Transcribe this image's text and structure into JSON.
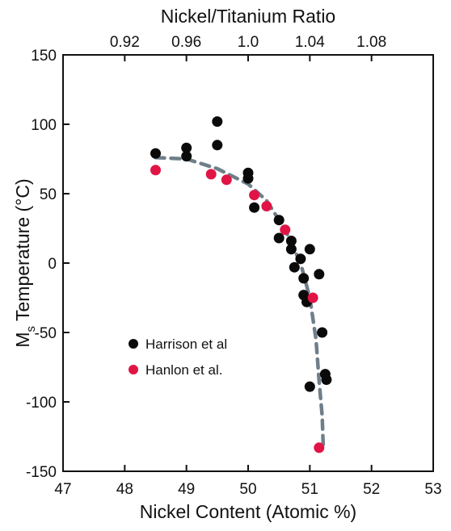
{
  "chart_data": {
    "type": "scatter",
    "title": "",
    "xlabel": "Nickel Content (Atomic %)",
    "ylabel_main": "M",
    "ylabel_sub": "s",
    "ylabel_rest": " Temperature (°C)",
    "top_axis_label": "Nickel/Titanium Ratio",
    "xlim": [
      47,
      53
    ],
    "ylim": [
      -150,
      150
    ],
    "x_ticks": [
      47,
      48,
      49,
      50,
      51,
      52,
      53
    ],
    "y_ticks": [
      150,
      100,
      50,
      0,
      -50,
      -100,
      -150
    ],
    "top_ticks": [
      {
        "label": "0.92",
        "x": 48.0
      },
      {
        "label": "0.96",
        "x": 49.0
      },
      {
        "label": "1.0",
        "x": 50.0
      },
      {
        "label": "1.04",
        "x": 51.0
      },
      {
        "label": "1.08",
        "x": 52.0
      }
    ],
    "grid": false,
    "legend_position": "lower-left",
    "series": [
      {
        "name": "Harrison et al",
        "color": "#0a0a0a",
        "points": [
          [
            48.5,
            79
          ],
          [
            49.0,
            83
          ],
          [
            49.0,
            77
          ],
          [
            49.5,
            102
          ],
          [
            49.5,
            85
          ],
          [
            50.0,
            65
          ],
          [
            50.0,
            61
          ],
          [
            50.1,
            40
          ],
          [
            50.5,
            31
          ],
          [
            50.5,
            18
          ],
          [
            50.7,
            16
          ],
          [
            50.7,
            10
          ],
          [
            50.75,
            -3
          ],
          [
            50.85,
            3
          ],
          [
            50.9,
            -11
          ],
          [
            50.9,
            -23
          ],
          [
            50.95,
            -28
          ],
          [
            51.0,
            10
          ],
          [
            51.15,
            -8
          ],
          [
            51.2,
            -50
          ],
          [
            51.25,
            -80
          ],
          [
            51.27,
            -84
          ],
          [
            51.0,
            -89
          ]
        ]
      },
      {
        "name": "Hanlon et al.",
        "color": "#e01545",
        "points": [
          [
            48.5,
            67
          ],
          [
            49.4,
            64
          ],
          [
            49.65,
            60
          ],
          [
            50.1,
            49
          ],
          [
            50.3,
            41
          ],
          [
            50.6,
            24
          ],
          [
            51.05,
            -25
          ],
          [
            51.15,
            -133
          ]
        ]
      }
    ],
    "trend_line": {
      "color": "#6f7f8a",
      "points": [
        [
          48.5,
          76
        ],
        [
          49.0,
          75
        ],
        [
          49.5,
          68
        ],
        [
          50.0,
          57
        ],
        [
          50.3,
          45
        ],
        [
          50.6,
          24
        ],
        [
          50.85,
          0
        ],
        [
          51.0,
          -25
        ],
        [
          51.1,
          -55
        ],
        [
          51.15,
          -85
        ],
        [
          51.2,
          -110
        ],
        [
          51.22,
          -135
        ]
      ]
    }
  }
}
